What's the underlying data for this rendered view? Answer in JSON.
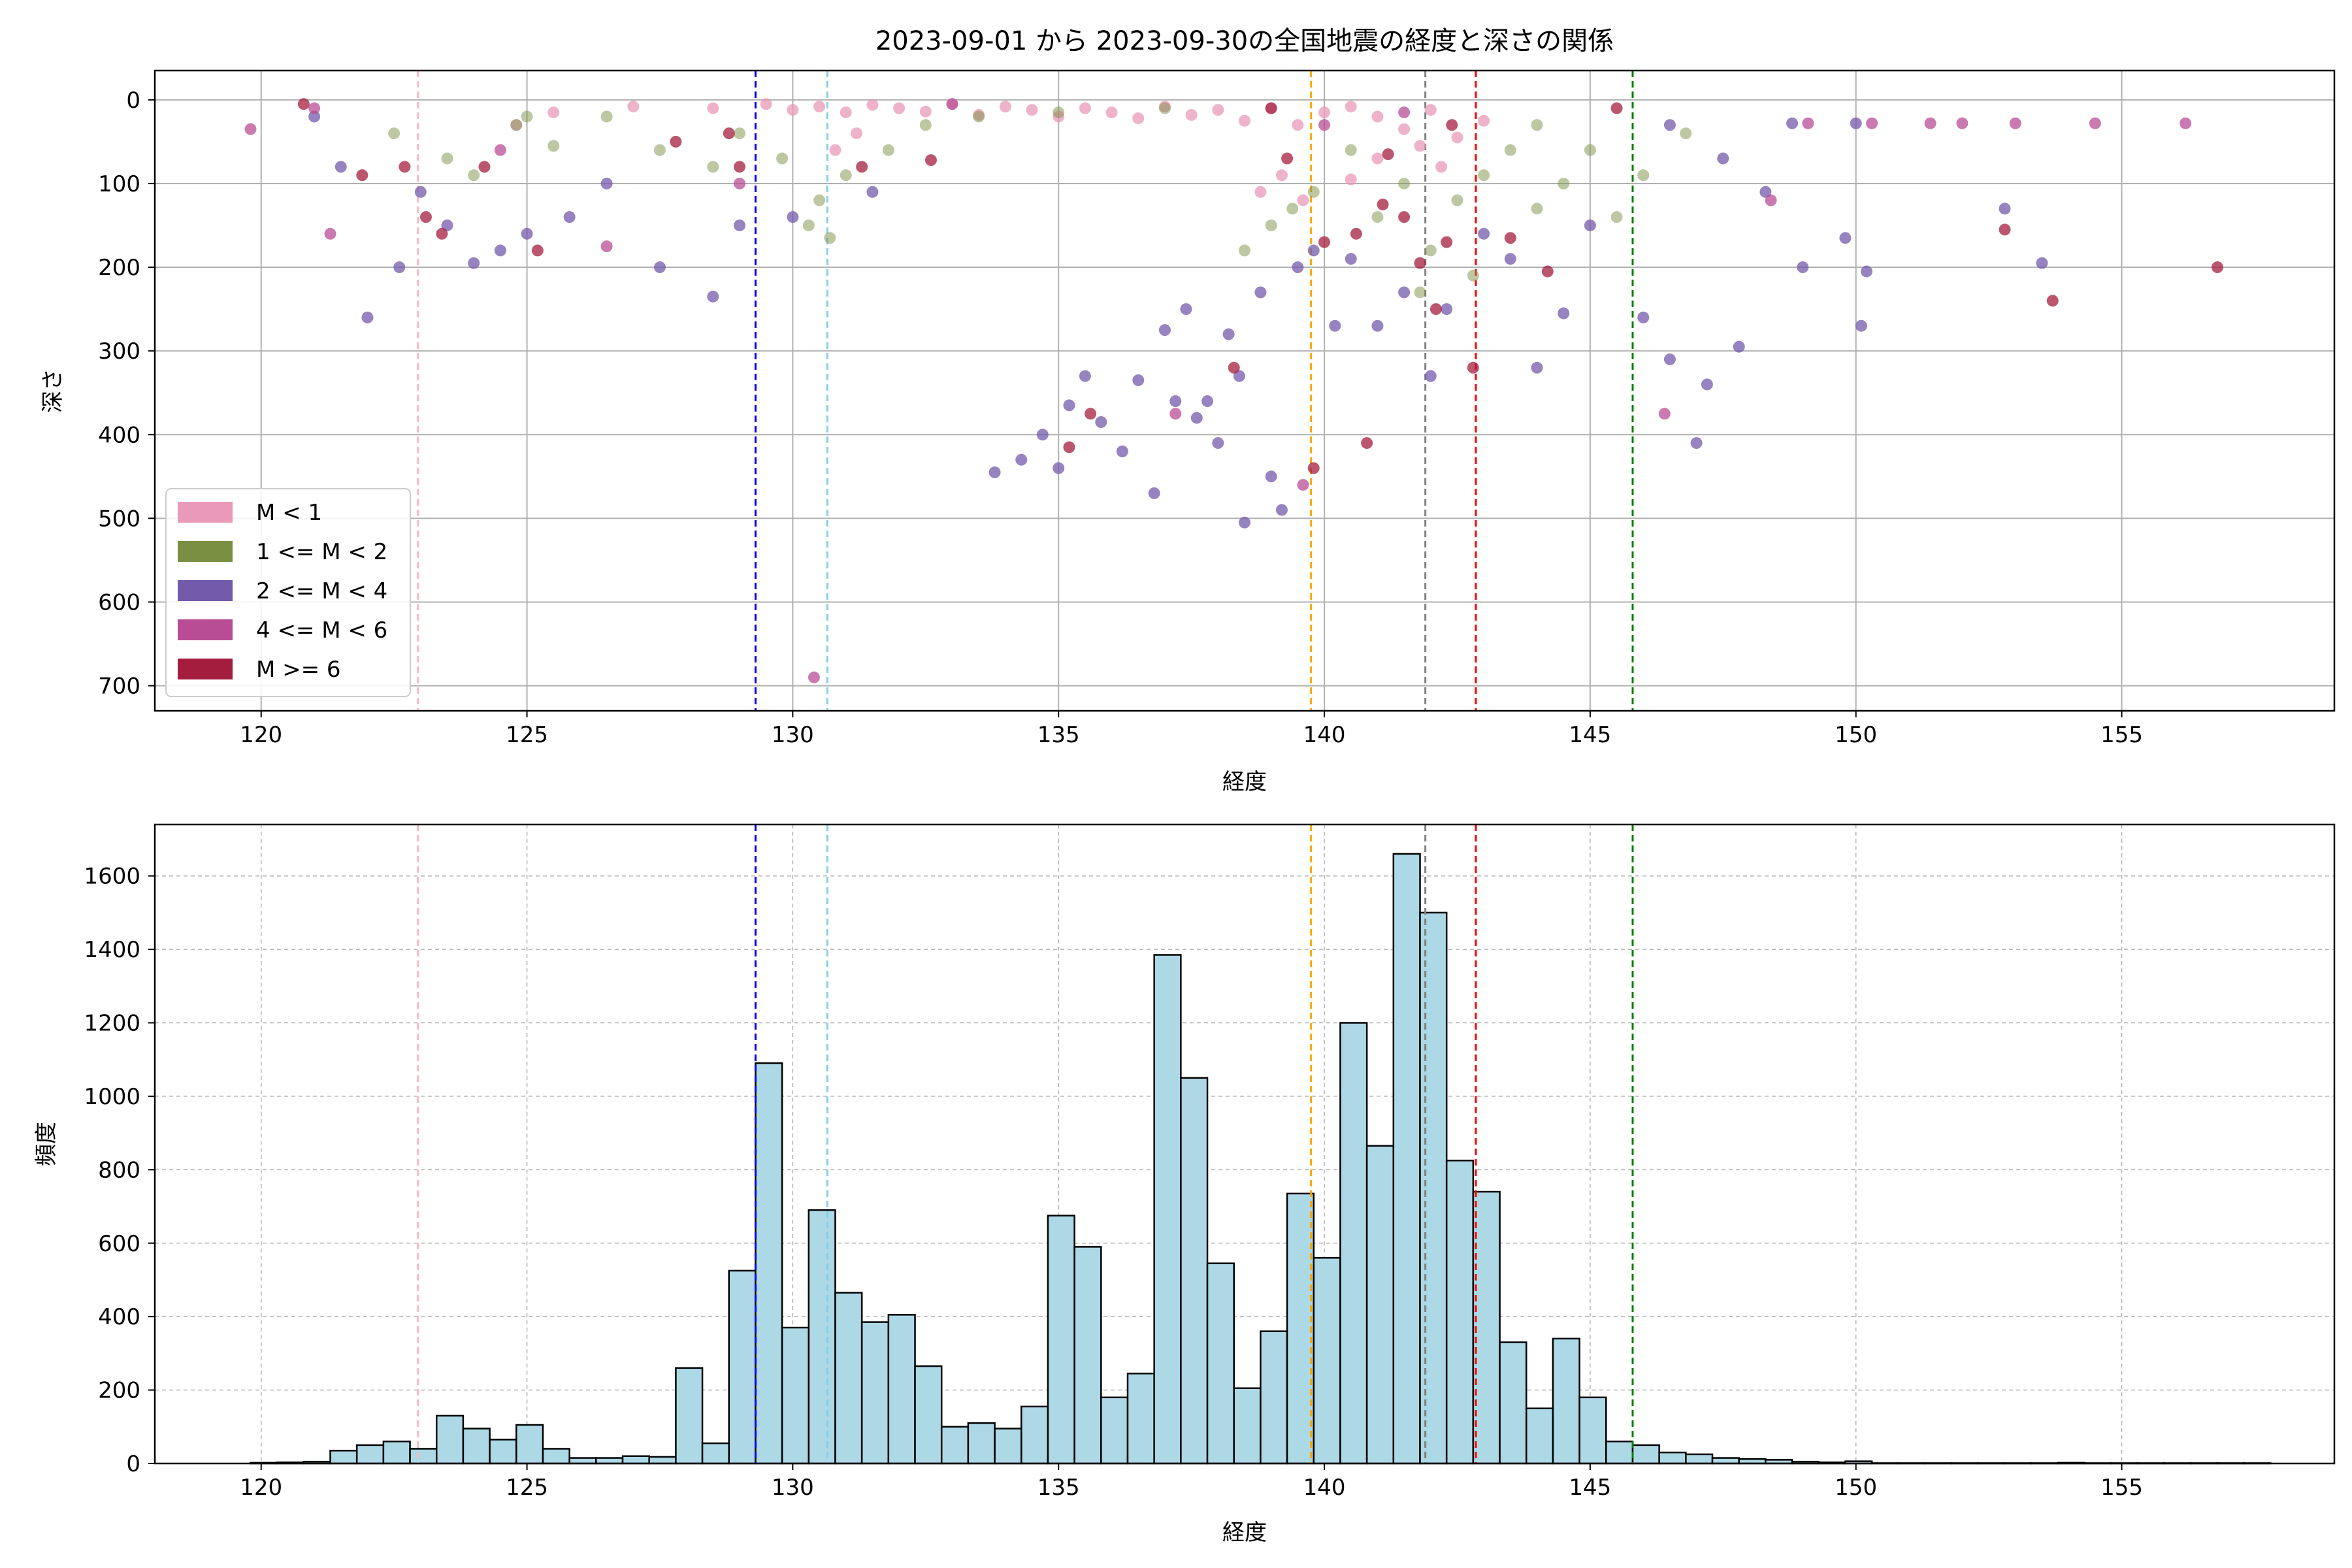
{
  "title": "2023-09-01 から 2023-09-30の全国地震の経度と深さの関係",
  "chart_data": [
    {
      "type": "scatter",
      "xlabel": "経度",
      "ylabel": "深さ",
      "xlim": [
        118,
        159
      ],
      "ylim": [
        730,
        -35
      ],
      "y_inverted": true,
      "xticks": [
        120,
        125,
        130,
        135,
        140,
        145,
        150,
        155
      ],
      "yticks": [
        0,
        100,
        200,
        300,
        400,
        500,
        600,
        700
      ],
      "grid": true,
      "legend_position": "lower-left",
      "series": [
        {
          "name": "M < 1",
          "color": "#e89ab8",
          "points": [
            [
              129.5,
              5
            ],
            [
              130,
              12
            ],
            [
              130.5,
              8
            ],
            [
              131,
              15
            ],
            [
              131.5,
              6
            ],
            [
              132,
              10
            ],
            [
              132.5,
              14
            ],
            [
              133,
              5
            ],
            [
              133.5,
              18
            ],
            [
              134,
              8
            ],
            [
              134.5,
              12
            ],
            [
              135,
              20
            ],
            [
              135.5,
              10
            ],
            [
              136,
              15
            ],
            [
              136.5,
              22
            ],
            [
              137,
              8
            ],
            [
              137.5,
              18
            ],
            [
              138,
              12
            ],
            [
              138.5,
              25
            ],
            [
              139,
              10
            ],
            [
              139.5,
              30
            ],
            [
              140,
              15
            ],
            [
              140.5,
              8
            ],
            [
              141,
              20
            ],
            [
              141.5,
              35
            ],
            [
              142,
              12
            ],
            [
              142.5,
              45
            ],
            [
              143,
              25
            ],
            [
              138.8,
              110
            ],
            [
              139.2,
              90
            ],
            [
              139.6,
              120
            ],
            [
              140.5,
              95
            ],
            [
              141,
              70
            ],
            [
              141.8,
              55
            ],
            [
              142.2,
              80
            ],
            [
              130.8,
              60
            ],
            [
              131.2,
              40
            ],
            [
              124.8,
              30
            ],
            [
              125.5,
              15
            ],
            [
              128.5,
              10
            ],
            [
              127,
              8
            ]
          ]
        },
        {
          "name": "1 <= M < 2",
          "color": "#7b8f43",
          "points": [
            [
              122.5,
              40
            ],
            [
              123.5,
              70
            ],
            [
              124,
              90
            ],
            [
              124.8,
              30
            ],
            [
              125.5,
              55
            ],
            [
              126.5,
              20
            ],
            [
              127.5,
              60
            ],
            [
              128.5,
              80
            ],
            [
              129,
              40
            ],
            [
              129.8,
              70
            ],
            [
              130.3,
              150
            ],
            [
              130.5,
              120
            ],
            [
              130.7,
              165
            ],
            [
              131,
              90
            ],
            [
              131.8,
              60
            ],
            [
              132.5,
              30
            ],
            [
              133.5,
              20
            ],
            [
              135,
              15
            ],
            [
              137,
              10
            ],
            [
              138.5,
              180
            ],
            [
              139,
              150
            ],
            [
              139.4,
              130
            ],
            [
              139.8,
              110
            ],
            [
              140.5,
              60
            ],
            [
              141,
              140
            ],
            [
              141.5,
              100
            ],
            [
              142,
              180
            ],
            [
              142.5,
              120
            ],
            [
              143,
              90
            ],
            [
              143.5,
              60
            ],
            [
              144,
              130
            ],
            [
              144.5,
              100
            ],
            [
              145,
              60
            ],
            [
              145.5,
              140
            ],
            [
              146,
              90
            ],
            [
              146.8,
              40
            ],
            [
              142.8,
              210
            ],
            [
              141.8,
              230
            ],
            [
              125,
              20
            ],
            [
              144,
              30
            ]
          ]
        },
        {
          "name": "2 <= M < 4",
          "color": "#735aaa",
          "points": [
            [
              121,
              20
            ],
            [
              121.5,
              80
            ],
            [
              122,
              260
            ],
            [
              122.6,
              200
            ],
            [
              123,
              110
            ],
            [
              123.5,
              150
            ],
            [
              124,
              195
            ],
            [
              124.5,
              180
            ],
            [
              125,
              160
            ],
            [
              125.8,
              140
            ],
            [
              126.5,
              100
            ],
            [
              127.5,
              200
            ],
            [
              128.5,
              235
            ],
            [
              129,
              150
            ],
            [
              130,
              140
            ],
            [
              131.5,
              110
            ],
            [
              133.8,
              445
            ],
            [
              134.3,
              430
            ],
            [
              134.7,
              400
            ],
            [
              135,
              440
            ],
            [
              135.2,
              365
            ],
            [
              135.5,
              330
            ],
            [
              135.8,
              385
            ],
            [
              136.2,
              420
            ],
            [
              136.5,
              335
            ],
            [
              136.8,
              470
            ],
            [
              137,
              275
            ],
            [
              137.2,
              360
            ],
            [
              137.4,
              250
            ],
            [
              137.6,
              380
            ],
            [
              137.8,
              360
            ],
            [
              138,
              410
            ],
            [
              138.2,
              280
            ],
            [
              138.4,
              330
            ],
            [
              138.5,
              505
            ],
            [
              138.8,
              230
            ],
            [
              139,
              450
            ],
            [
              139.2,
              490
            ],
            [
              139.5,
              200
            ],
            [
              139.8,
              180
            ],
            [
              140.2,
              270
            ],
            [
              140.5,
              190
            ],
            [
              141,
              270
            ],
            [
              141.5,
              230
            ],
            [
              142,
              330
            ],
            [
              142.3,
              250
            ],
            [
              143,
              160
            ],
            [
              143.5,
              190
            ],
            [
              144,
              320
            ],
            [
              144.5,
              255
            ],
            [
              145,
              150
            ],
            [
              146,
              260
            ],
            [
              146.5,
              310
            ],
            [
              147,
              410
            ],
            [
              147.2,
              340
            ],
            [
              147.8,
              295
            ],
            [
              148.3,
              110
            ],
            [
              149,
              200
            ],
            [
              149.8,
              165
            ],
            [
              150.1,
              270
            ],
            [
              150.2,
              205
            ],
            [
              152.8,
              130
            ],
            [
              153.5,
              195
            ],
            [
              150,
              28
            ],
            [
              148.8,
              28
            ],
            [
              147.5,
              70
            ],
            [
              146.5,
              30
            ]
          ]
        },
        {
          "name": "4 <= M < 6",
          "color": "#b84d96",
          "points": [
            [
              119.8,
              35
            ],
            [
              121.3,
              160
            ],
            [
              121,
              10
            ],
            [
              126.5,
              175
            ],
            [
              129,
              100
            ],
            [
              130.4,
              690
            ],
            [
              137.2,
              375
            ],
            [
              139.6,
              460
            ],
            [
              140,
              30
            ],
            [
              141.5,
              15
            ],
            [
              146.4,
              375
            ],
            [
              148.4,
              120
            ],
            [
              149.1,
              28
            ],
            [
              150.3,
              28
            ],
            [
              151.4,
              28
            ],
            [
              152,
              28
            ],
            [
              153,
              28
            ],
            [
              154.5,
              28
            ],
            [
              156.2,
              28
            ],
            [
              133,
              5
            ],
            [
              124.5,
              60
            ]
          ]
        },
        {
          "name": "M >= 6",
          "color": "#a41d3e",
          "points": [
            [
              120.8,
              5
            ],
            [
              121.9,
              90
            ],
            [
              122.7,
              80
            ],
            [
              123.1,
              140
            ],
            [
              123.4,
              160
            ],
            [
              124.2,
              80
            ],
            [
              125.2,
              180
            ],
            [
              127.8,
              50
            ],
            [
              128.8,
              40
            ],
            [
              129,
              80
            ],
            [
              131.3,
              80
            ],
            [
              132.6,
              72
            ],
            [
              135.2,
              415
            ],
            [
              135.6,
              375
            ],
            [
              138.3,
              320
            ],
            [
              139.3,
              70
            ],
            [
              139.8,
              440
            ],
            [
              140,
              170
            ],
            [
              140.6,
              160
            ],
            [
              140.8,
              410
            ],
            [
              141.1,
              125
            ],
            [
              141.5,
              140
            ],
            [
              141.8,
              195
            ],
            [
              142.1,
              250
            ],
            [
              142.3,
              170
            ],
            [
              142.8,
              320
            ],
            [
              143.5,
              165
            ],
            [
              144.2,
              205
            ],
            [
              145.5,
              10
            ],
            [
              152.8,
              155
            ],
            [
              153.7,
              240
            ],
            [
              156.8,
              200
            ],
            [
              141.2,
              65
            ],
            [
              142.4,
              30
            ],
            [
              139,
              10
            ]
          ]
        }
      ],
      "reference_lines": [
        {
          "x": 122.95,
          "color": "#ffb6c1"
        },
        {
          "x": 129.3,
          "color": "#0000ff"
        },
        {
          "x": 130.65,
          "color": "#87ceeb"
        },
        {
          "x": 139.75,
          "color": "#ffa500"
        },
        {
          "x": 141.9,
          "color": "#808080"
        },
        {
          "x": 142.85,
          "color": "#ff0000"
        },
        {
          "x": 145.8,
          "color": "#008000"
        }
      ]
    },
    {
      "type": "bar",
      "subtype": "histogram",
      "xlabel": "経度",
      "ylabel": "頻度",
      "xlim": [
        118,
        159
      ],
      "ylim": [
        0,
        1740
      ],
      "xticks": [
        120,
        125,
        130,
        135,
        140,
        145,
        150,
        155
      ],
      "yticks": [
        0,
        200,
        400,
        600,
        800,
        1000,
        1200,
        1400,
        1600
      ],
      "grid": true,
      "bar_color": "#add8e6",
      "edge_color": "#000000",
      "bin_start": 119.8,
      "bin_width": 0.5,
      "values": [
        2,
        3,
        5,
        35,
        50,
        60,
        40,
        130,
        95,
        65,
        105,
        40,
        15,
        15,
        20,
        18,
        260,
        55,
        525,
        1090,
        370,
        690,
        465,
        385,
        405,
        265,
        100,
        110,
        95,
        155,
        675,
        590,
        180,
        245,
        1385,
        1050,
        545,
        205,
        360,
        735,
        560,
        1200,
        865,
        1660,
        1500,
        825,
        740,
        330,
        150,
        340,
        180,
        60,
        50,
        30,
        25,
        15,
        12,
        10,
        5,
        3,
        6,
        1,
        1,
        1,
        1,
        1,
        1,
        1,
        2,
        1,
        1,
        1,
        1,
        1,
        1,
        1
      ],
      "reference_lines": [
        {
          "x": 122.95,
          "color": "#ffb6c1"
        },
        {
          "x": 129.3,
          "color": "#0000ff"
        },
        {
          "x": 130.65,
          "color": "#87ceeb"
        },
        {
          "x": 139.75,
          "color": "#ffa500"
        },
        {
          "x": 141.9,
          "color": "#808080"
        },
        {
          "x": 142.85,
          "color": "#ff0000"
        },
        {
          "x": 145.8,
          "color": "#008000"
        }
      ]
    }
  ]
}
